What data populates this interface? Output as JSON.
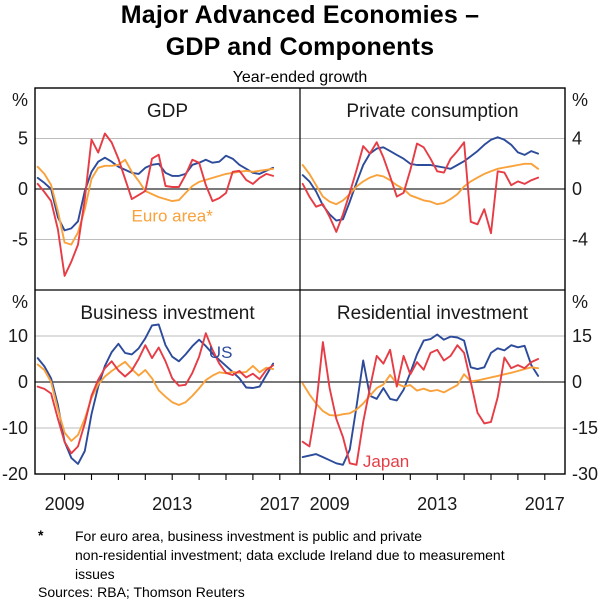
{
  "header": {
    "title_line1": "Major Advanced Economies –",
    "title_line2": "GDP and Components",
    "subtitle": "Year-ended growth"
  },
  "footnote": {
    "marker": "*",
    "lines": [
      "For euro area, business investment is public and private",
      "non-residential investment; data exclude Ireland due to measurement",
      "issues"
    ]
  },
  "sources": "Sources: RBA; Thomson Reuters",
  "colors": {
    "us": "#2d4b9b",
    "euro": "#f9a23c",
    "japan": "#e63c45",
    "grid": "#bcbcbc",
    "zero_line": "#2b2b2b",
    "frame": "#000000",
    "text": "#1a1a1a"
  },
  "chart_data": {
    "type": "line",
    "x_start": 2008.0,
    "x_step": 0.25,
    "x_axis": {
      "tick_years": [
        2009,
        2010,
        2011,
        2012,
        2013,
        2014,
        2015,
        2016,
        2017
      ],
      "labeled_years": [
        "2009",
        "2013",
        "2017"
      ]
    },
    "panels": [
      {
        "id": "gdp",
        "title": "GDP",
        "row": 0,
        "col": 0,
        "axis_side": "left",
        "unit_label": "%",
        "ylim": [
          -10,
          10
        ],
        "yticks": [
          {
            "v": 5,
            "label": "5"
          },
          {
            "v": 0,
            "label": "0"
          },
          {
            "v": -5,
            "label": "-5"
          }
        ],
        "annotations": [
          {
            "text": "Euro area*",
            "series": "euro",
            "t": 2013.0,
            "v": -2.6
          }
        ],
        "series": [
          {
            "key": "us",
            "name": "US",
            "values": [
              1.1,
              0.6,
              0.0,
              -2.8,
              -4.1,
              -3.9,
              -3.2,
              -0.2,
              1.7,
              2.7,
              3.1,
              2.7,
              2.2,
              1.9,
              1.6,
              1.5,
              2.1,
              2.4,
              2.5,
              1.6,
              1.3,
              1.3,
              1.5,
              2.4,
              2.6,
              2.9,
              2.6,
              2.7,
              3.3,
              3.0,
              2.4,
              2.0,
              1.6,
              1.5,
              1.8,
              2.1
            ]
          },
          {
            "key": "euro",
            "name": "Euro area",
            "values": [
              2.2,
              1.5,
              0.4,
              -2.2,
              -5.3,
              -5.5,
              -4.3,
              -2.0,
              1.0,
              2.1,
              2.3,
              2.3,
              2.4,
              2.9,
              1.7,
              0.8,
              -0.2,
              -0.5,
              -0.8,
              -1.0,
              -1.2,
              -1.1,
              -0.4,
              0.3,
              0.7,
              0.9,
              1.1,
              1.3,
              1.5,
              1.6,
              1.7,
              1.8,
              1.7,
              1.8,
              1.9,
              2.0
            ]
          },
          {
            "key": "japan",
            "name": "Japan",
            "values": [
              0.5,
              -0.3,
              -1.2,
              -4.0,
              -8.6,
              -7.2,
              -5.5,
              -1.0,
              4.9,
              3.6,
              5.5,
              4.6,
              3.0,
              1.0,
              -1.0,
              -0.6,
              -0.2,
              3.0,
              3.4,
              0.3,
              0.2,
              0.2,
              1.4,
              2.9,
              2.6,
              0.4,
              -1.2,
              -0.9,
              -0.4,
              1.7,
              1.8,
              0.9,
              0.5,
              1.1,
              1.5,
              1.3
            ]
          }
        ]
      },
      {
        "id": "consumption",
        "title": "Private consumption",
        "row": 0,
        "col": 1,
        "axis_side": "right",
        "unit_label": "%",
        "ylim": [
          -8,
          8
        ],
        "yticks": [
          {
            "v": 4,
            "label": "4"
          },
          {
            "v": 0,
            "label": "0"
          },
          {
            "v": -4,
            "label": "-4"
          }
        ],
        "annotations": [],
        "series": [
          {
            "key": "us",
            "name": "US",
            "values": [
              1.1,
              0.6,
              -0.2,
              -1.3,
              -2.0,
              -2.5,
              -2.4,
              -1.0,
              0.5,
              1.9,
              2.8,
              3.2,
              3.3,
              3.0,
              2.7,
              2.4,
              2.0,
              1.9,
              1.9,
              1.9,
              1.8,
              1.7,
              1.6,
              1.9,
              2.2,
              2.6,
              3.0,
              3.5,
              3.9,
              4.1,
              3.9,
              3.5,
              2.9,
              2.7,
              3.0,
              2.8
            ]
          },
          {
            "key": "euro",
            "name": "Euro area",
            "values": [
              1.9,
              1.2,
              0.3,
              -0.6,
              -1.0,
              -1.2,
              -0.9,
              -0.4,
              0.2,
              0.6,
              0.9,
              1.1,
              1.0,
              0.7,
              0.3,
              0.0,
              -0.5,
              -0.7,
              -0.9,
              -1.0,
              -1.2,
              -1.1,
              -0.8,
              -0.4,
              0.2,
              0.6,
              0.9,
              1.2,
              1.4,
              1.6,
              1.7,
              1.8,
              1.9,
              2.0,
              2.0,
              1.6
            ]
          },
          {
            "key": "japan",
            "name": "Japan",
            "values": [
              0.4,
              -0.6,
              -1.4,
              -1.2,
              -2.2,
              -3.4,
              -2.0,
              -0.3,
              1.5,
              3.4,
              2.8,
              3.7,
              2.5,
              1.0,
              -0.6,
              -0.3,
              1.5,
              3.6,
              3.3,
              2.4,
              1.4,
              1.3,
              2.4,
              3.0,
              3.7,
              -2.6,
              -2.8,
              -1.6,
              -3.5,
              1.4,
              1.3,
              0.3,
              0.6,
              0.4,
              0.7,
              0.9
            ]
          }
        ]
      },
      {
        "id": "business-investment",
        "title": "Business investment",
        "row": 1,
        "col": 0,
        "axis_side": "left",
        "unit_label": "%",
        "ylim": [
          -20,
          20
        ],
        "yticks": [
          {
            "v": 10,
            "label": "10"
          },
          {
            "v": 0,
            "label": "0"
          },
          {
            "v": -10,
            "label": "-10"
          },
          {
            "v": -20,
            "label": "-20"
          }
        ],
        "annotations": [
          {
            "text": "US",
            "series": "us",
            "t": 2014.8,
            "v": 6.5
          }
        ],
        "series": [
          {
            "key": "us",
            "name": "US",
            "values": [
              5.2,
              3.4,
              0.8,
              -5.0,
              -13.0,
              -16.5,
              -17.8,
              -15.0,
              -7.0,
              -1.0,
              3.5,
              6.5,
              8.3,
              6.3,
              6.0,
              7.3,
              9.5,
              12.3,
              12.5,
              8.0,
              5.5,
              4.5,
              6.0,
              7.8,
              9.2,
              7.8,
              6.2,
              4.8,
              3.5,
              2.2,
              0.8,
              -1.2,
              -1.3,
              -1.0,
              1.5,
              4.0
            ]
          },
          {
            "key": "euro",
            "name": "Euro area",
            "values": [
              3.8,
              2.6,
              0.0,
              -6.0,
              -11.0,
              -12.8,
              -11.5,
              -8.0,
              -3.5,
              -0.5,
              1.2,
              2.4,
              3.4,
              4.4,
              2.8,
              1.4,
              2.6,
              0.8,
              -1.8,
              -3.2,
              -4.4,
              -5.0,
              -4.4,
              -3.0,
              -1.4,
              0.4,
              1.4,
              2.1,
              1.9,
              2.2,
              2.0,
              2.2,
              3.5,
              2.1,
              3.1,
              2.8
            ]
          },
          {
            "key": "japan",
            "name": "Japan",
            "values": [
              -1.0,
              -1.5,
              -2.5,
              -8.0,
              -13.0,
              -15.5,
              -14.0,
              -9.0,
              -3.0,
              0.5,
              3.0,
              4.5,
              2.5,
              1.2,
              2.5,
              5.0,
              8.0,
              5.2,
              7.5,
              4.5,
              0.8,
              -0.8,
              -0.6,
              2.0,
              5.5,
              10.6,
              7.0,
              4.0,
              2.0,
              1.5,
              2.4,
              1.0,
              1.8,
              0.6,
              2.6,
              3.6
            ]
          }
        ]
      },
      {
        "id": "residential-investment",
        "title": "Residential investment",
        "row": 1,
        "col": 1,
        "axis_side": "right",
        "unit_label": "%",
        "ylim": [
          -30,
          30
        ],
        "yticks": [
          {
            "v": 15,
            "label": "15"
          },
          {
            "v": 0,
            "label": "0"
          },
          {
            "v": -15,
            "label": "-15"
          },
          {
            "v": -30,
            "label": "-30"
          }
        ],
        "annotations": [
          {
            "text": "Japan",
            "series": "japan",
            "t": 2011.1,
            "v": -25.8
          }
        ],
        "series": [
          {
            "key": "us",
            "name": "US",
            "values": [
              -24.5,
              -24.0,
              -23.5,
              -24.5,
              -25.5,
              -26.5,
              -27.0,
              -22.0,
              -8.0,
              7.0,
              -4.5,
              -5.5,
              -2.0,
              -5.5,
              -6.0,
              -2.5,
              3.0,
              9.0,
              13.5,
              14.0,
              15.5,
              13.8,
              14.8,
              14.5,
              13.5,
              4.8,
              4.2,
              4.8,
              9.5,
              11.0,
              10.3,
              12.0,
              11.3,
              11.8,
              5.5,
              2.0
            ]
          },
          {
            "key": "euro",
            "name": "Euro area",
            "values": [
              -0.5,
              -4.0,
              -7.0,
              -9.5,
              -10.8,
              -11.0,
              -10.5,
              -10.2,
              -9.0,
              -7.0,
              -4.5,
              -2.0,
              -0.8,
              2.3,
              -0.5,
              -1.5,
              -1.0,
              -2.8,
              -2.2,
              -3.0,
              -2.6,
              -3.4,
              -2.2,
              -1.0,
              2.5,
              0.2,
              0.5,
              1.0,
              1.5,
              2.0,
              2.5,
              3.0,
              3.6,
              4.2,
              4.8,
              4.5
            ]
          },
          {
            "key": "japan",
            "name": "Japan",
            "values": [
              -19.5,
              -21.0,
              -8.0,
              13.0,
              -2.0,
              -12.0,
              -18.0,
              -26.5,
              -27.0,
              -13.0,
              -2.0,
              8.5,
              6.0,
              10.5,
              -1.5,
              8.5,
              2.5,
              6.5,
              4.0,
              9.5,
              10.5,
              7.0,
              8.5,
              12.0,
              9.5,
              0.0,
              -10.0,
              -13.5,
              -13.0,
              -5.0,
              8.0,
              4.5,
              5.5,
              4.5,
              6.5,
              7.5
            ]
          }
        ]
      }
    ]
  }
}
